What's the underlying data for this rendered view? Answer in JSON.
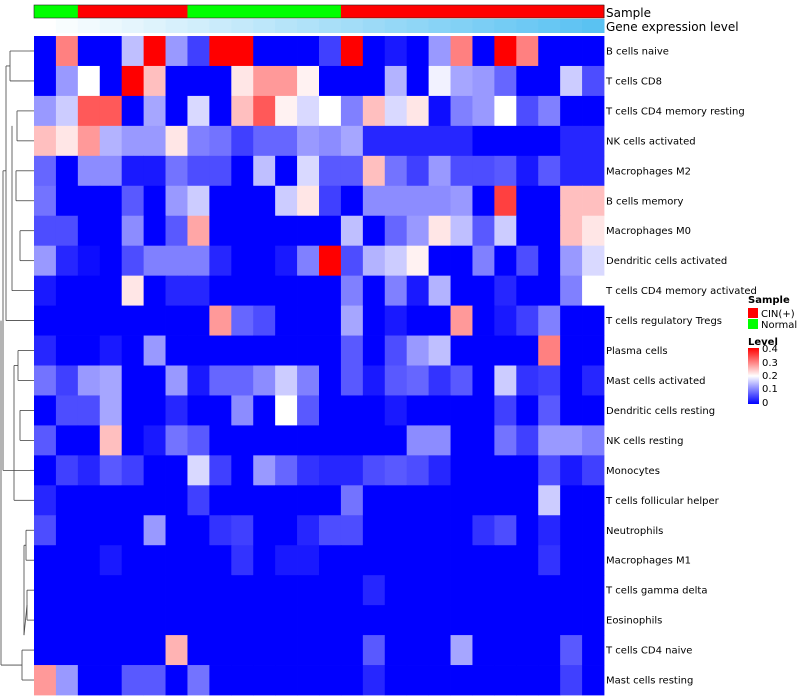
{
  "chart_data": {
    "type": "heatmap",
    "annotation_tracks": [
      {
        "name": "Sample",
        "label": "Sample"
      },
      {
        "name": "Gene expression level",
        "label": "Gene expression level"
      }
    ],
    "sample_groups": [
      "Normal",
      "Normal",
      "CIN(+)",
      "CIN(+)",
      "CIN(+)",
      "CIN(+)",
      "CIN(+)",
      "Normal",
      "Normal",
      "Normal",
      "Normal",
      "Normal",
      "Normal",
      "Normal",
      "CIN(+)",
      "CIN(+)",
      "CIN(+)",
      "CIN(+)",
      "CIN(+)",
      "CIN(+)",
      "CIN(+)",
      "CIN(+)",
      "CIN(+)",
      "CIN(+)",
      "CIN(+)",
      "CIN(+)"
    ],
    "expression_gradient": {
      "start": "#ffffff",
      "end": "#5ac2f2"
    },
    "rows": [
      "B cells naive",
      "T cells CD8",
      "T cells CD4 memory resting",
      "NK cells activated",
      "Macrophages M2",
      "B cells memory",
      "Macrophages M0",
      "Dendritic cells activated",
      "T cells CD4 memory activated",
      "T cells regulatory  Tregs",
      "Plasma cells",
      "Mast cells activated",
      "Dendritic cells resting",
      "NK cells resting",
      "Monocytes",
      "T cells follicular helper",
      "Neutrophils",
      "Macrophages M1",
      "T cells gamma delta",
      "Eosinophils",
      "T cells CD4 naive",
      "Mast cells resting"
    ],
    "values": [
      [
        0.0,
        0.3,
        0.0,
        0.0,
        0.15,
        0.4,
        0.12,
        0.05,
        0.4,
        0.4,
        0.0,
        0.0,
        0.0,
        0.05,
        0.4,
        0.0,
        0.02,
        0.0,
        0.12,
        0.3,
        0.0,
        0.4,
        0.3,
        0.0,
        0.0,
        0.0
      ],
      [
        0.0,
        0.12,
        0.2,
        0.0,
        0.4,
        0.25,
        0.0,
        0.0,
        0.0,
        0.22,
        0.28,
        0.28,
        0.21,
        0.0,
        0.0,
        0.0,
        0.14,
        0.0,
        0.19,
        0.13,
        0.12,
        0.08,
        0.0,
        0.0,
        0.16,
        0.06
      ],
      [
        0.12,
        0.16,
        0.33,
        0.33,
        0.0,
        0.13,
        0.0,
        0.17,
        0.0,
        0.25,
        0.33,
        0.21,
        0.17,
        0.2,
        0.1,
        0.25,
        0.17,
        0.22,
        0.01,
        0.1,
        0.12,
        0.2,
        0.06,
        0.1,
        0.0,
        0.0
      ],
      [
        0.25,
        0.22,
        0.28,
        0.14,
        0.12,
        0.12,
        0.22,
        0.1,
        0.09,
        0.05,
        0.08,
        0.08,
        0.12,
        0.11,
        0.13,
        0.03,
        0.03,
        0.03,
        0.03,
        0.03,
        0.0,
        0.0,
        0.0,
        0.0,
        0.03,
        0.03
      ],
      [
        0.08,
        0.0,
        0.11,
        0.11,
        0.02,
        0.02,
        0.09,
        0.06,
        0.06,
        0.0,
        0.15,
        0.0,
        0.17,
        0.07,
        0.07,
        0.25,
        0.09,
        0.05,
        0.12,
        0.06,
        0.06,
        0.07,
        0.02,
        0.07,
        0.03,
        0.03
      ],
      [
        0.09,
        0.0,
        0.0,
        0.0,
        0.07,
        0.0,
        0.12,
        0.16,
        0.0,
        0.0,
        0.0,
        0.16,
        0.22,
        0.05,
        0.0,
        0.11,
        0.11,
        0.11,
        0.11,
        0.12,
        0.0,
        0.35,
        0.0,
        0.0,
        0.25,
        0.25
      ],
      [
        0.06,
        0.06,
        0.0,
        0.0,
        0.11,
        0.0,
        0.07,
        0.27,
        0.0,
        0.0,
        0.0,
        0.0,
        0.0,
        0.0,
        0.15,
        0.0,
        0.08,
        0.12,
        0.22,
        0.15,
        0.07,
        0.16,
        0.0,
        0.0,
        0.25,
        0.22
      ],
      [
        0.12,
        0.03,
        0.01,
        0.0,
        0.06,
        0.1,
        0.1,
        0.1,
        0.03,
        0.0,
        0.0,
        0.02,
        0.1,
        0.4,
        0.06,
        0.14,
        0.16,
        0.21,
        0.0,
        0.0,
        0.1,
        0.0,
        0.06,
        0.0,
        0.12,
        0.17
      ],
      [
        0.02,
        0.0,
        0.0,
        0.0,
        0.22,
        0.0,
        0.03,
        0.03,
        0.0,
        0.0,
        0.0,
        0.0,
        0.0,
        0.0,
        0.1,
        0.0,
        0.1,
        0.02,
        0.14,
        0.0,
        0.0,
        0.03,
        0.0,
        0.0,
        0.1,
        0.2
      ],
      [
        0.0,
        0.0,
        0.0,
        0.0,
        0.0,
        0.0,
        0.0,
        0.0,
        0.28,
        0.08,
        0.06,
        0.0,
        0.0,
        0.0,
        0.13,
        0.0,
        0.02,
        0.0,
        0.0,
        0.28,
        0.0,
        0.02,
        0.05,
        0.1,
        0.0,
        0.0
      ],
      [
        0.03,
        0.0,
        0.0,
        0.02,
        0.0,
        0.12,
        0.0,
        0.0,
        0.0,
        0.0,
        0.0,
        0.0,
        0.0,
        0.0,
        0.07,
        0.0,
        0.06,
        0.12,
        0.15,
        0.0,
        0.0,
        0.0,
        0.0,
        0.3,
        0.0,
        0.0
      ],
      [
        0.09,
        0.05,
        0.12,
        0.13,
        0.0,
        0.0,
        0.12,
        0.02,
        0.08,
        0.08,
        0.11,
        0.16,
        0.1,
        0.0,
        0.07,
        0.02,
        0.07,
        0.08,
        0.04,
        0.07,
        0.0,
        0.16,
        0.04,
        0.05,
        0.0,
        0.03
      ],
      [
        0.0,
        0.06,
        0.06,
        0.13,
        0.0,
        0.0,
        0.03,
        0.0,
        0.0,
        0.11,
        0.0,
        0.2,
        0.07,
        0.0,
        0.0,
        0.0,
        0.02,
        0.0,
        0.0,
        0.0,
        0.0,
        0.05,
        0.0,
        0.07,
        0.0,
        0.0
      ],
      [
        0.07,
        0.0,
        0.0,
        0.25,
        0.0,
        0.02,
        0.09,
        0.07,
        0.0,
        0.0,
        0.0,
        0.0,
        0.0,
        0.0,
        0.0,
        0.0,
        0.0,
        0.11,
        0.11,
        0.0,
        0.0,
        0.09,
        0.05,
        0.12,
        0.12,
        0.1
      ],
      [
        0.0,
        0.05,
        0.03,
        0.07,
        0.05,
        0.0,
        0.0,
        0.17,
        0.05,
        0.0,
        0.12,
        0.08,
        0.04,
        0.03,
        0.03,
        0.06,
        0.07,
        0.06,
        0.03,
        0.0,
        0.0,
        0.0,
        0.0,
        0.06,
        0.02,
        0.05
      ],
      [
        0.03,
        0.0,
        0.0,
        0.0,
        0.0,
        0.0,
        0.0,
        0.05,
        0.0,
        0.0,
        0.0,
        0.0,
        0.0,
        0.0,
        0.09,
        0.0,
        0.0,
        0.0,
        0.0,
        0.0,
        0.0,
        0.0,
        0.0,
        0.16,
        0.0,
        0.0
      ],
      [
        0.06,
        0.0,
        0.0,
        0.0,
        0.0,
        0.12,
        0.0,
        0.0,
        0.04,
        0.05,
        0.0,
        0.0,
        0.03,
        0.06,
        0.06,
        0.0,
        0.0,
        0.0,
        0.0,
        0.0,
        0.04,
        0.06,
        0.0,
        0.03,
        0.0,
        0.0
      ],
      [
        0.0,
        0.0,
        0.0,
        0.02,
        0.0,
        0.0,
        0.0,
        0.0,
        0.0,
        0.04,
        0.0,
        0.02,
        0.02,
        0.0,
        0.0,
        0.0,
        0.0,
        0.0,
        0.0,
        0.0,
        0.0,
        0.0,
        0.0,
        0.04,
        0.0,
        0.0
      ],
      [
        0.0,
        0.0,
        0.0,
        0.0,
        0.0,
        0.0,
        0.0,
        0.0,
        0.0,
        0.0,
        0.0,
        0.0,
        0.0,
        0.0,
        0.0,
        0.03,
        0.0,
        0.0,
        0.0,
        0.0,
        0.0,
        0.0,
        0.0,
        0.0,
        0.0,
        0.0
      ],
      [
        0.0,
        0.0,
        0.0,
        0.0,
        0.0,
        0.0,
        0.0,
        0.0,
        0.0,
        0.0,
        0.0,
        0.0,
        0.0,
        0.0,
        0.0,
        0.0,
        0.0,
        0.0,
        0.0,
        0.0,
        0.0,
        0.0,
        0.0,
        0.0,
        0.0,
        0.0
      ],
      [
        0.0,
        0.0,
        0.0,
        0.0,
        0.0,
        0.0,
        0.26,
        0.0,
        0.0,
        0.0,
        0.0,
        0.0,
        0.0,
        0.0,
        0.0,
        0.07,
        0.0,
        0.0,
        0.0,
        0.13,
        0.0,
        0.0,
        0.0,
        0.0,
        0.07,
        0.0
      ],
      [
        0.28,
        0.12,
        0.0,
        0.0,
        0.07,
        0.07,
        0.0,
        0.09,
        0.0,
        0.0,
        0.0,
        0.0,
        0.0,
        0.0,
        0.0,
        0.03,
        0.0,
        0.0,
        0.0,
        0.0,
        0.0,
        0.0,
        0.0,
        0.0,
        0.05,
        0.0
      ]
    ],
    "color_scale": {
      "min": 0,
      "mid": 0.2,
      "max": 0.4,
      "low": "#0000ff",
      "midColor": "#ffffff",
      "high": "#ff0000"
    },
    "legend": {
      "sample_title": "Sample",
      "sample_items": [
        {
          "label": "CIN(+)",
          "color": "#ff0000"
        },
        {
          "label": "Normal",
          "color": "#00ff00"
        }
      ],
      "level_title": "Level",
      "level_ticks": [
        "0.4",
        "0.3",
        "0.2",
        "0.1",
        "0"
      ],
      "placement": "right"
    }
  }
}
